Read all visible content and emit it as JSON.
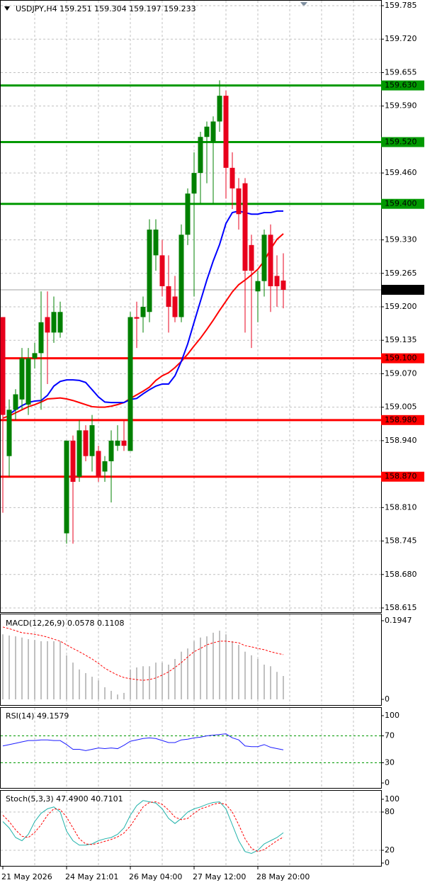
{
  "chart_data": [
    {
      "type": "candlestick",
      "title": "USDJPY,H4  159.251 159.304 159.197 159.233",
      "categories": [
        "21 May 2026",
        null,
        null,
        null,
        null,
        null,
        null,
        null,
        null,
        null,
        "24 May 21:01",
        null,
        null,
        null,
        null,
        null,
        null,
        null,
        null,
        null,
        "26 May 04:00",
        null,
        null,
        null,
        null,
        null,
        null,
        null,
        null,
        null,
        "27 May 12:00",
        null,
        null,
        null,
        null,
        null,
        null,
        null,
        null,
        null,
        "28 May 20:00",
        null,
        null,
        null,
        null
      ],
      "open": [
        159.18,
        158.91,
        159.0,
        159.02,
        159.01,
        159.1,
        159.11,
        159.18,
        159.15,
        159.15,
        158.76,
        158.94,
        158.87,
        158.96,
        158.91,
        158.92,
        158.88,
        158.9,
        158.93,
        158.94,
        158.92,
        159.18,
        159.18,
        159.19,
        159.3,
        159.3,
        159.24,
        159.22,
        159.18,
        159.34,
        159.42,
        159.46,
        159.53,
        159.52,
        159.56,
        159.61,
        159.47,
        159.43,
        159.44,
        159.32,
        159.23,
        159.25,
        159.34,
        159.26,
        159.251
      ],
      "high": [
        159.18,
        159.02,
        159.04,
        159.12,
        159.12,
        159.13,
        159.23,
        159.23,
        159.22,
        159.21,
        158.94,
        158.95,
        158.98,
        158.97,
        158.99,
        158.93,
        158.91,
        158.96,
        158.97,
        158.98,
        159.19,
        159.21,
        159.22,
        159.37,
        159.37,
        159.33,
        159.3,
        159.26,
        159.36,
        159.43,
        159.5,
        159.54,
        159.56,
        159.57,
        159.64,
        159.62,
        159.5,
        159.45,
        159.45,
        159.34,
        159.27,
        159.35,
        159.36,
        159.3,
        159.304
      ],
      "low": [
        158.8,
        158.87,
        158.98,
        159.0,
        158.99,
        159.08,
        159.0,
        159.05,
        159.13,
        159.14,
        158.74,
        158.74,
        158.86,
        158.9,
        158.88,
        158.86,
        158.86,
        158.82,
        158.92,
        158.92,
        158.92,
        159.12,
        159.15,
        159.17,
        159.27,
        159.22,
        159.15,
        159.17,
        159.17,
        159.32,
        159.22,
        159.4,
        159.44,
        159.4,
        159.54,
        159.41,
        159.39,
        159.35,
        159.15,
        159.12,
        159.17,
        159.22,
        159.19,
        159.2,
        159.197
      ],
      "close": [
        158.99,
        159.0,
        159.03,
        159.1,
        159.1,
        159.11,
        159.17,
        159.15,
        159.19,
        159.19,
        158.94,
        158.86,
        158.96,
        158.91,
        158.97,
        158.87,
        158.9,
        158.94,
        158.94,
        158.93,
        159.18,
        159.177,
        159.2,
        159.35,
        159.35,
        159.24,
        159.2,
        159.18,
        159.34,
        159.42,
        159.46,
        159.53,
        159.55,
        159.56,
        159.61,
        159.47,
        159.43,
        159.38,
        159.27,
        159.27,
        159.25,
        159.34,
        159.24,
        159.24,
        159.233
      ],
      "up_color": "#008000",
      "down_color": "#e8001c",
      "overlays": [
        {
          "color": "#ff0000",
          "values": [
            158.984,
            158.988,
            158.994,
            159.0,
            159.006,
            159.01,
            159.015,
            159.021,
            159.022,
            159.023,
            159.021,
            159.018,
            159.014,
            159.01,
            159.006,
            159.005,
            159.005,
            159.007,
            159.01,
            159.014,
            159.022,
            159.029,
            159.036,
            159.044,
            159.057,
            159.066,
            159.072,
            159.082,
            159.094,
            159.108,
            159.124,
            159.139,
            159.156,
            159.174,
            159.193,
            159.211,
            159.229,
            159.243,
            159.252,
            159.262,
            159.273,
            159.289,
            159.312,
            159.331,
            159.342
          ]
        },
        {
          "color": "#0000ff",
          "values": [
            null,
            158.991,
            159.0,
            159.008,
            159.014,
            159.017,
            159.018,
            159.028,
            159.046,
            159.055,
            159.058,
            159.058,
            159.057,
            159.053,
            159.039,
            159.025,
            159.015,
            159.014,
            159.014,
            159.014,
            159.02,
            159.022,
            159.031,
            159.039,
            159.046,
            159.05,
            159.05,
            159.066,
            159.094,
            159.128,
            159.17,
            159.211,
            159.252,
            159.289,
            159.321,
            159.362,
            159.383,
            159.386,
            159.383,
            159.38,
            159.38,
            159.383,
            159.383,
            159.386,
            159.386
          ]
        }
      ],
      "levels": [
        {
          "value": 159.63,
          "label": "159.630",
          "color": "#009900"
        },
        {
          "value": 159.52,
          "label": "159.520",
          "color": "#009900"
        },
        {
          "value": 159.4,
          "label": "159.400",
          "color": "#009900"
        },
        {
          "value": 159.1,
          "label": "159.100",
          "color": "#ff0000"
        },
        {
          "value": 158.98,
          "label": "158.980",
          "color": "#ff0000"
        },
        {
          "value": 158.87,
          "label": "158.870",
          "color": "#ff0000"
        }
      ],
      "last_price": {
        "value": 159.233,
        "label": "159.233"
      },
      "ylim": [
        158.615,
        159.785
      ],
      "yticks": [
        159.785,
        {
          "value": 159.72,
          "label": "159.720"
        },
        159.655,
        {
          "value": 159.59,
          "label": "159.590"
        },
        {
          "value": 159.46,
          "label": "159.460"
        },
        {
          "value": 159.33,
          "label": "159.330"
        },
        159.265,
        {
          "value": 159.2,
          "label": "159.200"
        },
        159.135,
        {
          "value": 159.07,
          "label": "159.070"
        },
        159.005,
        {
          "value": 158.94,
          "label": "158.940"
        },
        {
          "value": 158.81,
          "label": "158.810"
        },
        158.745,
        {
          "value": 158.68,
          "label": "158.680"
        },
        158.615
      ],
      "grid": true
    },
    {
      "type": "macd",
      "title": "MACD(12,26,9) 0.0578 0.1108",
      "values": [
        0.161,
        0.158,
        0.156,
        0.153,
        0.149,
        0.147,
        0.144,
        0.144,
        0.144,
        0.144,
        0.109,
        0.091,
        0.074,
        0.065,
        0.056,
        0.047,
        0.03,
        0.021,
        0.012,
        0.016,
        0.074,
        0.079,
        0.082,
        0.082,
        0.091,
        0.091,
        0.086,
        0.1,
        0.118,
        0.126,
        0.144,
        0.153,
        0.156,
        0.165,
        0.17,
        0.161,
        0.144,
        0.135,
        0.118,
        0.109,
        0.1,
        0.086,
        0.082,
        0.068,
        0.0578
      ],
      "signal": [
        0.179,
        0.175,
        0.17,
        0.165,
        0.163,
        0.161,
        0.158,
        0.154,
        0.149,
        0.144,
        0.135,
        0.126,
        0.118,
        0.109,
        0.1,
        0.089,
        0.077,
        0.068,
        0.06,
        0.054,
        0.051,
        0.049,
        0.047,
        0.049,
        0.053,
        0.06,
        0.068,
        0.079,
        0.091,
        0.105,
        0.118,
        0.126,
        0.135,
        0.14,
        0.144,
        0.144,
        0.142,
        0.14,
        0.133,
        0.13,
        0.126,
        0.123,
        0.118,
        0.114,
        0.1108
      ],
      "color": "#c0c0c0",
      "signal_color": "#ff0000",
      "ylim": [
        0,
        0.1947
      ],
      "yticks": [
        0,
        0.1947
      ]
    },
    {
      "type": "line",
      "title": "RSI(14) 49.1579",
      "series": [
        {
          "color": "#1e1eff",
          "values": [
            55,
            57,
            59,
            61,
            63,
            63,
            64,
            64,
            63,
            63,
            57,
            50,
            50,
            48,
            50,
            52,
            51,
            52,
            51,
            56,
            62,
            64,
            66,
            67,
            66,
            63,
            60,
            60,
            64,
            65,
            67,
            68,
            70,
            71,
            72,
            73,
            67,
            64,
            55,
            54,
            54,
            57,
            53,
            51,
            49.1579
          ]
        }
      ],
      "levels": [
        30,
        70
      ],
      "level_color": "#009900",
      "ylim": [
        0,
        100
      ],
      "yticks": [
        0,
        30,
        70,
        100
      ]
    },
    {
      "type": "line",
      "title": "Stoch(5,3,3) 47.4900 40.7101",
      "series": [
        {
          "color": "#20b2aa",
          "values": [
            65,
            55,
            40,
            35,
            45,
            65,
            78,
            85,
            88,
            80,
            50,
            35,
            28,
            28,
            30,
            35,
            38,
            40,
            45,
            55,
            75,
            90,
            98,
            96,
            94,
            85,
            70,
            62,
            70,
            80,
            85,
            88,
            92,
            95,
            96,
            85,
            60,
            35,
            18,
            15,
            20,
            30,
            35,
            40,
            47.49
          ]
        },
        {
          "color": "#ff0000",
          "dashed": true,
          "values": [
            75,
            65,
            52,
            42,
            40,
            48,
            60,
            75,
            85,
            84,
            72,
            55,
            38,
            30,
            29,
            31,
            34,
            37,
            41,
            47,
            58,
            73,
            88,
            95,
            96,
            92,
            83,
            72,
            68,
            70,
            78,
            85,
            88,
            92,
            94,
            92,
            80,
            60,
            38,
            23,
            18,
            21,
            28,
            35,
            40.7101
          ]
        }
      ],
      "levels": [
        20,
        80
      ],
      "level_color": "#c0c0c0",
      "ylim": [
        0,
        100
      ],
      "yticks": [
        0,
        20,
        80,
        100
      ]
    }
  ]
}
